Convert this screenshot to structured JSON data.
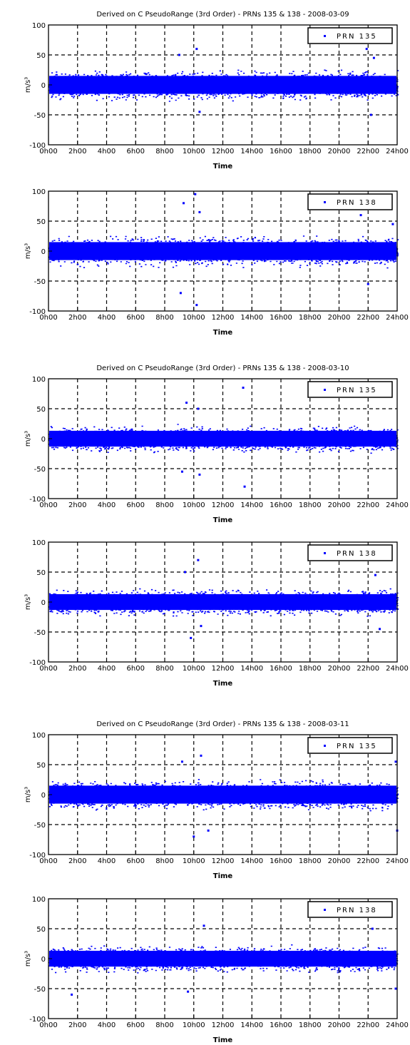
{
  "chart_data": [
    {
      "type": "scatter",
      "title": "Derived on C PseudoRange (3rd Order) - PRNs 135 & 138 - 2008-03-09",
      "xlabel": "Time",
      "ylabel": "m/s³",
      "ylim": [
        -100,
        100
      ],
      "yticks": [
        "100",
        "50",
        "0",
        "-50",
        "-100"
      ],
      "xlim": [
        0,
        24
      ],
      "xticks": [
        "0h00",
        "2h00",
        "4h00",
        "6h00",
        "8h00",
        "10h00",
        "12h00",
        "14h00",
        "16h00",
        "18h00",
        "20h00",
        "22h00",
        "24h00"
      ],
      "grid": true,
      "legend_position": "top-right",
      "color": "#0000ff",
      "series": [
        {
          "name": "PRN 135",
          "band": 25,
          "extremes": [
            [
              9.0,
              50
            ],
            [
              10.2,
              60
            ],
            [
              10.4,
              -45
            ],
            [
              21.9,
              60
            ],
            [
              22.2,
              -50
            ],
            [
              22.4,
              45
            ]
          ]
        }
      ]
    },
    {
      "type": "scatter",
      "title": "",
      "xlabel": "Time",
      "ylabel": "m/s³",
      "ylim": [
        -100,
        100
      ],
      "yticks": [
        "100",
        "50",
        "0",
        "-50",
        "-100"
      ],
      "xlim": [
        0,
        24
      ],
      "xticks": [
        "0h00",
        "2h00",
        "4h00",
        "6h00",
        "8h00",
        "10h00",
        "12h00",
        "14h00",
        "16h00",
        "18h00",
        "20h00",
        "22h00",
        "24h00"
      ],
      "grid": true,
      "legend_position": "top-right",
      "color": "#0000ff",
      "series": [
        {
          "name": "PRN 138",
          "band": 25,
          "extremes": [
            [
              9.1,
              -70
            ],
            [
              9.3,
              80
            ],
            [
              10.1,
              95
            ],
            [
              10.2,
              -90
            ],
            [
              10.4,
              65
            ],
            [
              21.5,
              60
            ],
            [
              22.0,
              -55
            ],
            [
              23.7,
              45
            ]
          ]
        }
      ]
    },
    {
      "type": "scatter",
      "title": "Derived on C PseudoRange (3rd Order) - PRNs 135 & 138 - 2008-03-10",
      "xlabel": "Time",
      "ylabel": "m/s³",
      "ylim": [
        -100,
        100
      ],
      "yticks": [
        "100",
        "50",
        "0",
        "-50",
        "-100"
      ],
      "xlim": [
        0,
        24
      ],
      "xticks": [
        "0h00",
        "2h00",
        "4h00",
        "6h00",
        "8h00",
        "10h00",
        "12h00",
        "14h00",
        "16h00",
        "18h00",
        "20h00",
        "22h00",
        "24h00"
      ],
      "grid": true,
      "legend_position": "top-right",
      "color": "#0000ff",
      "series": [
        {
          "name": "PRN 135",
          "band": 22,
          "extremes": [
            [
              9.2,
              -55
            ],
            [
              9.5,
              60
            ],
            [
              10.3,
              50
            ],
            [
              10.4,
              -60
            ],
            [
              13.4,
              85
            ],
            [
              13.5,
              -80
            ]
          ]
        }
      ]
    },
    {
      "type": "scatter",
      "title": "",
      "xlabel": "Time",
      "ylabel": "m/s³",
      "ylim": [
        -100,
        100
      ],
      "yticks": [
        "100",
        "50",
        "0",
        "-50",
        "-100"
      ],
      "xlim": [
        0,
        24
      ],
      "xticks": [
        "0h00",
        "2h00",
        "4h00",
        "6h00",
        "8h00",
        "10h00",
        "12h00",
        "14h00",
        "16h00",
        "18h00",
        "20h00",
        "22h00",
        "24h00"
      ],
      "grid": true,
      "legend_position": "top-right",
      "color": "#0000ff",
      "series": [
        {
          "name": "PRN 138",
          "band": 22,
          "extremes": [
            [
              9.4,
              50
            ],
            [
              9.8,
              -60
            ],
            [
              10.3,
              70
            ],
            [
              10.5,
              -40
            ],
            [
              22.5,
              45
            ],
            [
              22.8,
              -45
            ]
          ]
        }
      ]
    },
    {
      "type": "scatter",
      "title": "Derived on C PseudoRange (3rd Order) - PRNs 135 & 138 - 2008-03-11",
      "xlabel": "Time",
      "ylabel": "m/s³",
      "ylim": [
        -100,
        100
      ],
      "yticks": [
        "100",
        "50",
        "0",
        "-50",
        "-100"
      ],
      "xlim": [
        0,
        24
      ],
      "xticks": [
        "0h00",
        "2h00",
        "4h00",
        "6h00",
        "8h00",
        "10h00",
        "12h00",
        "14h00",
        "16h00",
        "18h00",
        "20h00",
        "22h00",
        "24h00"
      ],
      "grid": true,
      "legend_position": "top-right",
      "color": "#0000ff",
      "series": [
        {
          "name": "PRN 135",
          "band": 25,
          "extremes": [
            [
              9.2,
              55
            ],
            [
              10.0,
              -70
            ],
            [
              10.5,
              65
            ],
            [
              11.0,
              -60
            ],
            [
              23.9,
              55
            ],
            [
              24.0,
              -60
            ]
          ]
        }
      ]
    },
    {
      "type": "scatter",
      "title": "",
      "xlabel": "Time",
      "ylabel": "m/s³",
      "ylim": [
        -100,
        100
      ],
      "yticks": [
        "100",
        "50",
        "0",
        "-50",
        "-100"
      ],
      "xlim": [
        0,
        24
      ],
      "xticks": [
        "0h00",
        "2h00",
        "4h00",
        "6h00",
        "8h00",
        "10h00",
        "12h00",
        "14h00",
        "16h00",
        "18h00",
        "20h00",
        "22h00",
        "24h00"
      ],
      "grid": true,
      "legend_position": "top-right",
      "color": "#0000ff",
      "series": [
        {
          "name": "PRN 138",
          "band": 22,
          "extremes": [
            [
              1.6,
              -60
            ],
            [
              9.6,
              -55
            ],
            [
              10.7,
              55
            ],
            [
              22.3,
              50
            ],
            [
              23.9,
              -50
            ]
          ]
        }
      ]
    }
  ]
}
